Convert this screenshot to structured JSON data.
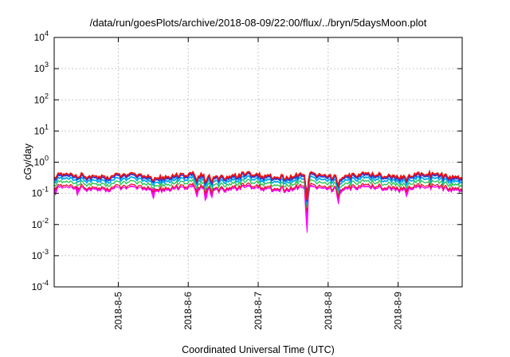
{
  "chart_data": {
    "type": "line",
    "title": "/data/run/goesPlots/archive/2018-08-09/22:00/flux/../bryn/5daysMoon.plot",
    "xlabel": "Coordinated Universal Time (UTC)",
    "ylabel": "cGy/day",
    "y_scale": "log",
    "ylim": [
      0.0001,
      10000
    ],
    "y_ticks": [
      {
        "value": 0.0001,
        "base": "10",
        "exp": "-4"
      },
      {
        "value": 0.001,
        "base": "10",
        "exp": "-3"
      },
      {
        "value": 0.01,
        "base": "10",
        "exp": "-2"
      },
      {
        "value": 0.1,
        "base": "10",
        "exp": "-1"
      },
      {
        "value": 1,
        "base": "10",
        "exp": "0"
      },
      {
        "value": 10,
        "base": "10",
        "exp": "1"
      },
      {
        "value": 100,
        "base": "10",
        "exp": "2"
      },
      {
        "value": 1000,
        "base": "10",
        "exp": "3"
      },
      {
        "value": 10000,
        "base": "10",
        "exp": "4"
      }
    ],
    "xlim": [
      "2018-08-04T02:00",
      "2018-08-09T22:00"
    ],
    "x_ticks": [
      {
        "value": "2018-08-05T00:00",
        "label": "2018-8-5"
      },
      {
        "value": "2018-08-06T00:00",
        "label": "2018-8-6"
      },
      {
        "value": "2018-08-07T00:00",
        "label": "2018-8-7"
      },
      {
        "value": "2018-08-08T00:00",
        "label": "2018-8-8"
      },
      {
        "value": "2018-08-09T00:00",
        "label": "2018-8-9"
      }
    ],
    "grid": true,
    "series": [
      {
        "color": "#ff00ff",
        "fill": true,
        "level": 0.14
      },
      {
        "color": "#e8142c",
        "level": 0.16
      },
      {
        "color": "#22c44a",
        "level": 0.21
      },
      {
        "color": "#00aaee",
        "level": 0.27
      },
      {
        "color": "#2233dd",
        "level": 0.33
      },
      {
        "color": "#ee1111",
        "level": 0.37
      }
    ],
    "features": [
      {
        "time": "2018-08-04T02:30",
        "value": 0.09
      },
      {
        "time": "2018-08-04T10:00",
        "value": 0.085
      },
      {
        "time": "2018-08-05T12:00",
        "value": 0.065
      },
      {
        "time": "2018-08-06T03:00",
        "value": 0.075
      },
      {
        "time": "2018-08-06T06:00",
        "value": 0.05
      },
      {
        "time": "2018-08-06T08:00",
        "value": 0.07
      },
      {
        "time": "2018-08-07T16:40",
        "value": 0.004
      },
      {
        "time": "2018-08-08T03:30",
        "value": 0.045
      },
      {
        "time": "2018-08-09T03:00",
        "value": 0.075
      }
    ]
  }
}
